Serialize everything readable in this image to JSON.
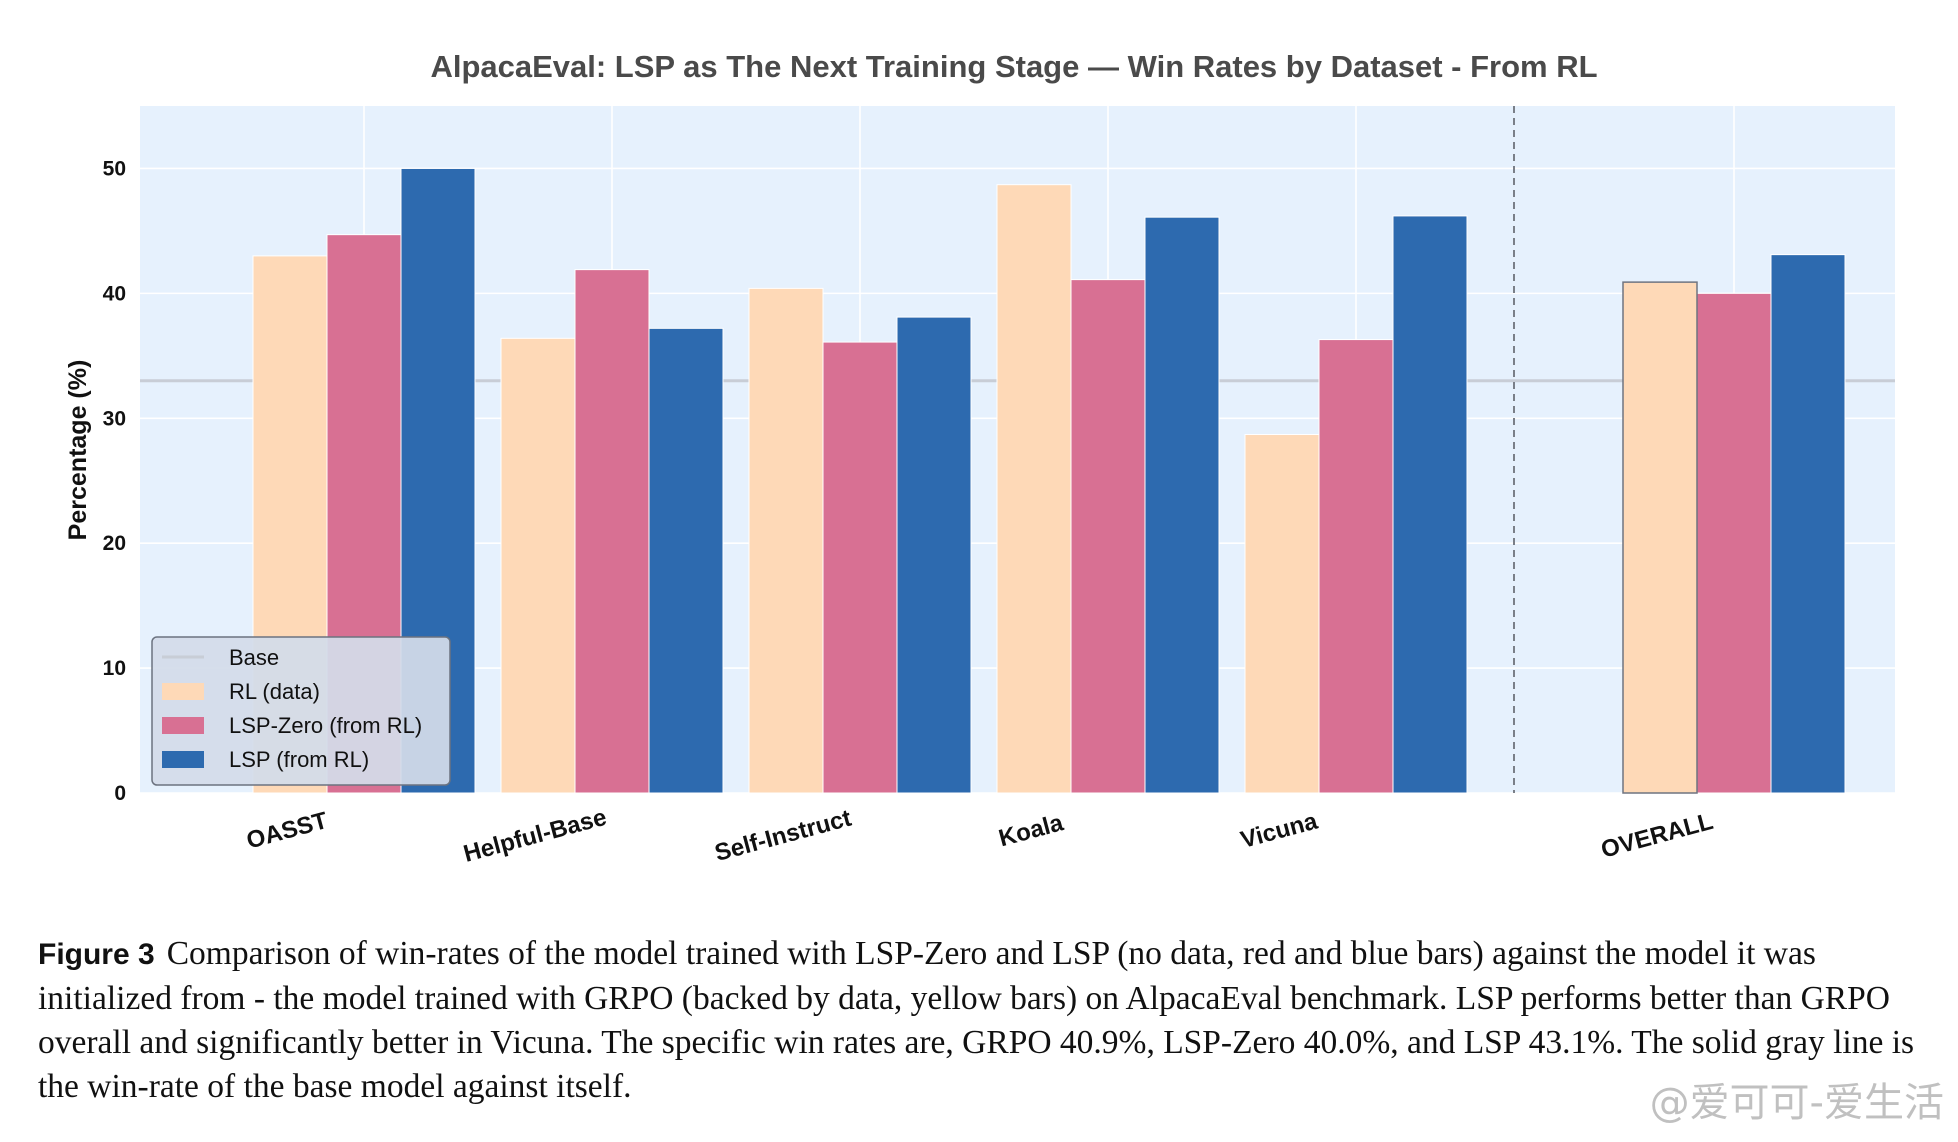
{
  "chart_data": {
    "type": "bar",
    "title": "AlpacaEval: LSP as The Next Training Stage  — Win Rates by Dataset - From RL",
    "ylabel": "Percentage (%)",
    "xlabel": "",
    "ylim": [
      0,
      55
    ],
    "yticks": [
      0,
      10,
      20,
      30,
      40,
      50
    ],
    "categories": [
      "OASST",
      "Helpful-Base",
      "Self-Instruct",
      "Koala",
      "Vicuna",
      "OVERALL"
    ],
    "series": [
      {
        "name": "RL (data)",
        "color": "#fed9b7",
        "values": [
          43.0,
          36.4,
          40.4,
          48.7,
          28.7,
          40.9
        ]
      },
      {
        "name": "LSP-Zero (from RL)",
        "color": "#d87093",
        "values": [
          44.7,
          41.9,
          36.1,
          41.1,
          36.3,
          40.0
        ]
      },
      {
        "name": "LSP (from RL)",
        "color": "#2d6aaf",
        "values": [
          50.0,
          37.2,
          38.1,
          46.1,
          46.2,
          43.1
        ]
      }
    ],
    "baseline": {
      "name": "Base",
      "value": 33.0,
      "color": "#c8cdd6"
    },
    "separator_before": "OVERALL",
    "grid": true,
    "background_color": "#e6f1fd",
    "legend_position": "lower-left"
  },
  "caption": {
    "label": "Figure 3",
    "text": "Comparison of win-rates of the model trained with LSP-Zero and LSP (no data, red and blue bars) against the model it was initialized from - the model trained with GRPO (backed by data, yellow bars) on AlpacaEval benchmark. LSP performs better than GRPO overall and significantly better in Vicuna. The specific win rates are, GRPO 40.9%, LSP-Zero 40.0%, and LSP 43.1%. The solid gray line is the win-rate of the base model against itself."
  },
  "watermark": "@爱可可-爱生活"
}
